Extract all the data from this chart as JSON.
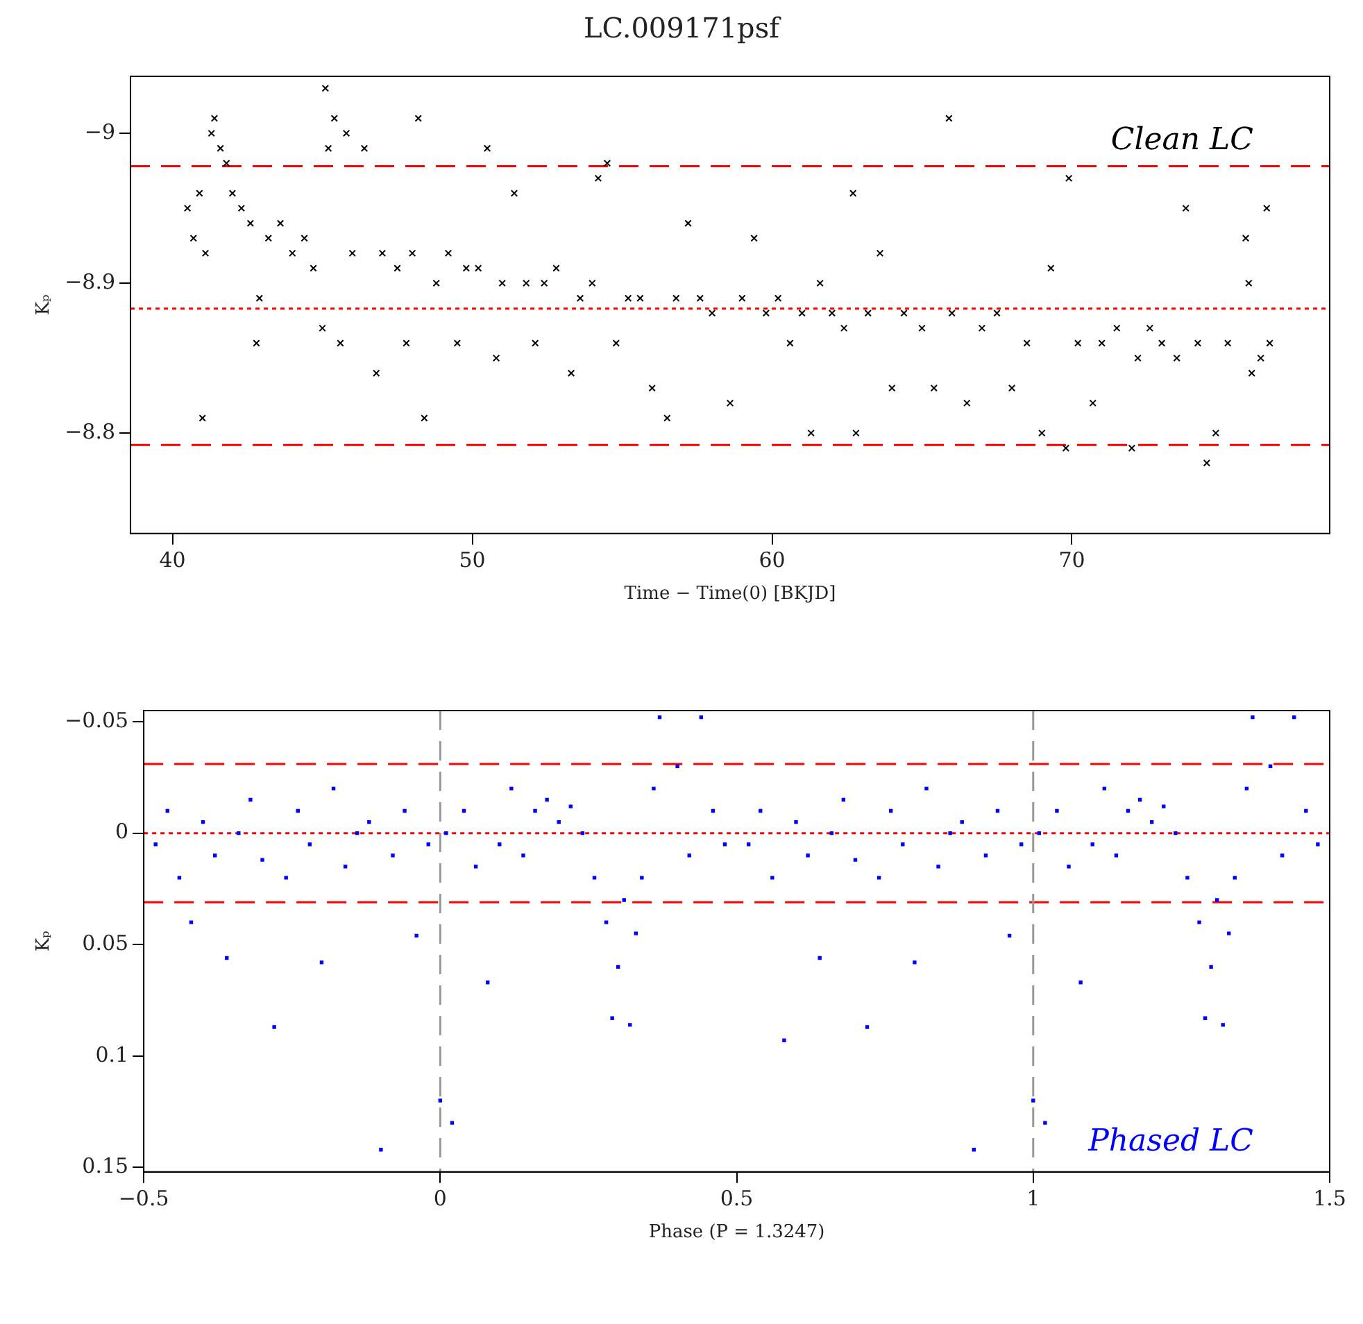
{
  "chart_data": [
    {
      "type": "scatter",
      "title": "LC.009171psf",
      "xlabel": "Time − Time(0) [BKJD]",
      "ylabel": "Kₚ",
      "annotations": [
        "Clean LC"
      ],
      "xlim": [
        38.6,
        78.6
      ],
      "xticks": [
        40,
        50,
        60,
        70
      ],
      "ylim": [
        -8.733,
        -9.038
      ],
      "yticks": [
        {
          "value": -9,
          "label": "−9"
        },
        {
          "value": -8.9,
          "label": "−8.9"
        },
        {
          "value": -8.8,
          "label": "−8.8"
        }
      ],
      "grid": false,
      "legend": false,
      "marker": "cross",
      "ref_lines": [
        {
          "axis": "y",
          "value": -8.978,
          "color": "#ff0000",
          "line_style": "dashed"
        },
        {
          "axis": "y",
          "value": -8.883,
          "color": "#ff0000",
          "line_style": "dotted"
        },
        {
          "axis": "y",
          "value": -8.792,
          "color": "#ff0000",
          "line_style": "dashed"
        }
      ],
      "series": [
        {
          "color": "#000000",
          "x": [
            40.5,
            40.7,
            40.9,
            41.0,
            41.1,
            41.3,
            41.4,
            41.6,
            41.8,
            42.0,
            42.3,
            42.6,
            42.8,
            42.9,
            43.2,
            43.6,
            44.0,
            44.4,
            44.7,
            45.0,
            45.1,
            45.2,
            45.4,
            45.6,
            45.8,
            46.0,
            46.4,
            46.8,
            47.0,
            47.5,
            47.8,
            48.0,
            48.2,
            48.4,
            48.8,
            49.2,
            49.5,
            49.8,
            50.2,
            50.5,
            50.8,
            51.0,
            51.4,
            51.8,
            52.1,
            52.4,
            52.8,
            53.3,
            53.6,
            54.0,
            54.2,
            54.5,
            54.8,
            55.2,
            55.6,
            56.0,
            56.5,
            56.8,
            57.2,
            57.6,
            58.0,
            58.6,
            59.0,
            59.4,
            59.8,
            60.2,
            60.6,
            61.0,
            61.3,
            61.6,
            62.0,
            62.4,
            62.7,
            62.8,
            63.2,
            63.6,
            64.0,
            64.4,
            65.0,
            65.4,
            65.9,
            66.0,
            66.5,
            67.0,
            67.5,
            68.0,
            68.5,
            69.0,
            69.3,
            69.8,
            69.9,
            70.2,
            70.7,
            71.0,
            71.5,
            72.0,
            72.2,
            72.6,
            73.0,
            73.5,
            73.8,
            74.2,
            74.5,
            74.8,
            75.2,
            75.8,
            75.9,
            76.0,
            76.3,
            76.5,
            76.6
          ],
          "values": [
            -8.95,
            -8.93,
            -8.96,
            -8.81,
            -8.92,
            -9.0,
            -9.01,
            -8.99,
            -8.98,
            -8.96,
            -8.95,
            -8.94,
            -8.86,
            -8.89,
            -8.93,
            -8.94,
            -8.92,
            -8.93,
            -8.91,
            -8.87,
            -9.03,
            -8.99,
            -9.01,
            -8.86,
            -9.0,
            -8.92,
            -8.99,
            -8.84,
            -8.92,
            -8.91,
            -8.86,
            -8.92,
            -9.01,
            -8.81,
            -8.9,
            -8.92,
            -8.86,
            -8.91,
            -8.91,
            -8.99,
            -8.85,
            -8.9,
            -8.96,
            -8.9,
            -8.86,
            -8.9,
            -8.91,
            -8.84,
            -8.89,
            -8.9,
            -8.97,
            -8.98,
            -8.86,
            -8.89,
            -8.89,
            -8.83,
            -8.81,
            -8.89,
            -8.94,
            -8.89,
            -8.88,
            -8.82,
            -8.89,
            -8.93,
            -8.88,
            -8.89,
            -8.86,
            -8.88,
            -8.8,
            -8.9,
            -8.88,
            -8.87,
            -8.96,
            -8.8,
            -8.88,
            -8.92,
            -8.83,
            -8.88,
            -8.87,
            -8.83,
            -9.01,
            -8.88,
            -8.82,
            -8.87,
            -8.88,
            -8.83,
            -8.86,
            -8.8,
            -8.91,
            -8.79,
            -8.97,
            -8.86,
            -8.82,
            -8.86,
            -8.87,
            -8.79,
            -8.85,
            -8.87,
            -8.86,
            -8.85,
            -8.95,
            -8.86,
            -8.78,
            -8.8,
            -8.86,
            -8.93,
            -8.9,
            -8.84,
            -8.85,
            -8.95,
            -8.86
          ]
        }
      ]
    },
    {
      "type": "scatter",
      "xlabel": "Phase (P = 1.3247)",
      "ylabel": "Kₚ",
      "annotations": [
        "Phased LC"
      ],
      "xlim": [
        -0.5,
        1.5
      ],
      "xticks": [
        {
          "value": -0.5,
          "label": "−0.5"
        },
        0,
        0.5,
        1,
        1.5
      ],
      "ylim": [
        0.152,
        -0.055
      ],
      "yticks": [
        {
          "value": -0.05,
          "label": "−0.05"
        },
        0,
        0.05,
        0.1,
        0.15
      ],
      "grid": false,
      "legend": false,
      "marker": "square",
      "ref_lines": [
        {
          "axis": "y",
          "value": -0.031,
          "color": "#ff0000",
          "line_style": "dashed"
        },
        {
          "axis": "y",
          "value": 0,
          "color": "#ff0000",
          "line_style": "dotted"
        },
        {
          "axis": "y",
          "value": 0.031,
          "color": "#ff0000",
          "line_style": "dashed"
        },
        {
          "axis": "x",
          "value": 0,
          "color": "#999999",
          "line_style": "dashed"
        },
        {
          "axis": "x",
          "value": 1,
          "color": "#999999",
          "line_style": "dashed"
        }
      ],
      "series": [
        {
          "color": "#0000ff",
          "x": [
            -0.48,
            -0.46,
            -0.44,
            -0.42,
            -0.4,
            -0.38,
            -0.36,
            -0.34,
            -0.32,
            -0.3,
            -0.28,
            -0.26,
            -0.24,
            -0.22,
            -0.2,
            -0.18,
            -0.16,
            -0.14,
            -0.12,
            -0.1,
            -0.08,
            -0.06,
            -0.04,
            -0.02,
            0.0,
            0.01,
            0.02,
            0.04,
            0.06,
            0.08,
            0.1,
            0.12,
            0.14,
            0.16,
            0.18,
            0.2,
            0.22,
            0.24,
            0.26,
            0.28,
            0.29,
            0.3,
            0.31,
            0.32,
            0.33,
            0.34,
            0.36,
            0.37,
            0.4,
            0.42,
            0.44,
            0.46,
            0.48,
            0.52,
            0.54,
            0.56,
            0.58,
            0.6,
            0.62,
            0.64,
            0.66,
            0.68,
            0.7,
            0.72,
            0.74,
            0.76,
            0.78,
            0.8,
            0.82,
            0.84,
            0.86,
            0.88,
            0.9,
            0.92,
            0.94,
            0.96,
            0.98,
            1.0,
            1.01,
            1.02,
            1.04,
            1.06,
            1.08,
            1.1,
            1.12,
            1.14,
            1.16,
            1.18,
            1.2,
            1.22,
            1.24,
            1.26,
            1.28,
            1.29,
            1.3,
            1.31,
            1.32,
            1.33,
            1.34,
            1.36,
            1.37,
            1.4,
            1.42,
            1.44,
            1.46,
            1.48
          ],
          "values": [
            0.005,
            -0.01,
            0.02,
            0.04,
            -0.005,
            0.01,
            0.056,
            0.0,
            -0.015,
            0.012,
            0.087,
            0.02,
            -0.01,
            0.005,
            0.058,
            -0.02,
            0.015,
            0.0,
            -0.005,
            0.142,
            0.01,
            -0.01,
            0.046,
            0.005,
            0.12,
            0.0,
            0.13,
            -0.01,
            0.015,
            0.067,
            0.005,
            -0.02,
            0.01,
            -0.01,
            -0.015,
            -0.005,
            -0.012,
            0.0,
            0.02,
            0.04,
            0.083,
            0.06,
            0.03,
            0.086,
            0.045,
            0.02,
            -0.02,
            -0.052,
            -0.03,
            0.01,
            -0.052,
            -0.01,
            0.005,
            0.005,
            -0.01,
            0.02,
            0.093,
            -0.005,
            0.01,
            0.056,
            0.0,
            -0.015,
            0.012,
            0.087,
            0.02,
            -0.01,
            0.005,
            0.058,
            -0.02,
            0.015,
            0.0,
            -0.005,
            0.142,
            0.01,
            -0.01,
            0.046,
            0.005,
            0.12,
            0.0,
            0.13,
            -0.01,
            0.015,
            0.067,
            0.005,
            -0.02,
            0.01,
            -0.01,
            -0.015,
            -0.005,
            -0.012,
            0.0,
            0.02,
            0.04,
            0.083,
            0.06,
            0.03,
            0.086,
            0.045,
            0.02,
            -0.02,
            -0.052,
            -0.03,
            0.01,
            -0.052,
            -0.01,
            0.005
          ]
        }
      ]
    }
  ]
}
